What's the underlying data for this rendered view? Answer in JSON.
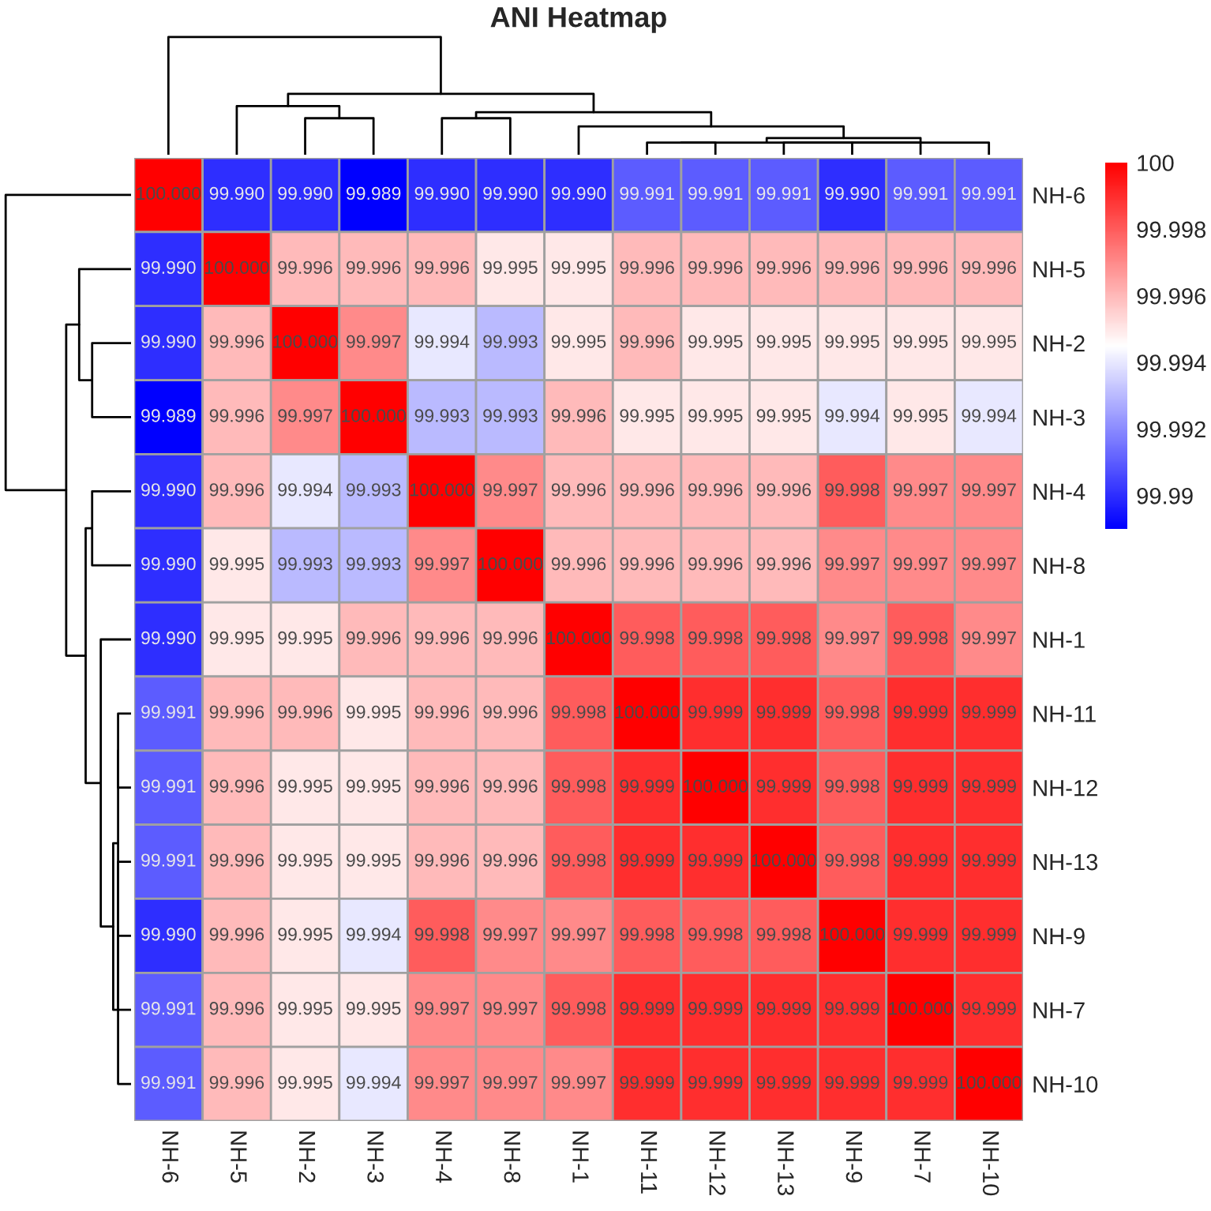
{
  "chart_data": {
    "type": "heatmap",
    "title": "ANI Heatmap",
    "categories": [
      "NH-6",
      "NH-5",
      "NH-2",
      "NH-3",
      "NH-4",
      "NH-8",
      "NH-1",
      "NH-11",
      "NH-12",
      "NH-13",
      "NH-9",
      "NH-7",
      "NH-10"
    ],
    "y_categories": [
      "NH-6",
      "NH-5",
      "NH-2",
      "NH-3",
      "NH-4",
      "NH-8",
      "NH-1",
      "NH-11",
      "NH-12",
      "NH-13",
      "NH-9",
      "NH-7",
      "NH-10"
    ],
    "cells": [
      [
        100.0,
        99.99,
        99.99,
        99.989,
        99.99,
        99.99,
        99.99,
        99.991,
        99.991,
        99.991,
        99.99,
        99.991,
        99.991
      ],
      [
        99.99,
        100.0,
        99.996,
        99.996,
        99.996,
        99.995,
        99.995,
        99.996,
        99.996,
        99.996,
        99.996,
        99.996,
        99.996
      ],
      [
        99.99,
        99.996,
        100.0,
        99.997,
        99.994,
        99.993,
        99.995,
        99.996,
        99.995,
        99.995,
        99.995,
        99.995,
        99.995
      ],
      [
        99.989,
        99.996,
        99.997,
        100.0,
        99.993,
        99.993,
        99.996,
        99.995,
        99.995,
        99.995,
        99.994,
        99.995,
        99.994
      ],
      [
        99.99,
        99.996,
        99.994,
        99.993,
        100.0,
        99.997,
        99.996,
        99.996,
        99.996,
        99.996,
        99.998,
        99.997,
        99.997
      ],
      [
        99.99,
        99.995,
        99.993,
        99.993,
        99.997,
        100.0,
        99.996,
        99.996,
        99.996,
        99.996,
        99.997,
        99.997,
        99.997
      ],
      [
        99.99,
        99.995,
        99.995,
        99.996,
        99.996,
        99.996,
        100.0,
        99.998,
        99.998,
        99.998,
        99.997,
        99.998,
        99.997
      ],
      [
        99.991,
        99.996,
        99.996,
        99.995,
        99.996,
        99.996,
        99.998,
        100.0,
        99.999,
        99.999,
        99.998,
        99.999,
        99.999
      ],
      [
        99.991,
        99.996,
        99.995,
        99.995,
        99.996,
        99.996,
        99.998,
        99.999,
        100.0,
        99.999,
        99.998,
        99.999,
        99.999
      ],
      [
        99.991,
        99.996,
        99.995,
        99.995,
        99.996,
        99.996,
        99.998,
        99.999,
        99.999,
        100.0,
        99.998,
        99.999,
        99.999
      ],
      [
        99.99,
        99.996,
        99.995,
        99.994,
        99.998,
        99.997,
        99.997,
        99.998,
        99.998,
        99.998,
        100.0,
        99.999,
        99.999
      ],
      [
        99.991,
        99.996,
        99.995,
        99.995,
        99.997,
        99.997,
        99.998,
        99.999,
        99.999,
        99.999,
        99.999,
        100.0,
        99.999
      ],
      [
        99.991,
        99.996,
        99.995,
        99.994,
        99.997,
        99.997,
        99.997,
        99.999,
        99.999,
        99.999,
        99.999,
        99.999,
        100.0
      ]
    ],
    "cell_labels": [
      [
        "100.000",
        "99.990",
        "99.990",
        "99.989",
        "99.990",
        "99.990",
        "99.990",
        "99.991",
        "99.991",
        "99.991",
        "99.990",
        "99.991",
        "99.991"
      ],
      [
        "99.990",
        "100.000",
        "99.996",
        "99.996",
        "99.996",
        "99.995",
        "99.995",
        "99.996",
        "99.996",
        "99.996",
        "99.996",
        "99.996",
        "99.996"
      ],
      [
        "99.990",
        "99.996",
        "100.000",
        "99.997",
        "99.994",
        "99.993",
        "99.995",
        "99.996",
        "99.995",
        "99.995",
        "99.995",
        "99.995",
        "99.995"
      ],
      [
        "99.989",
        "99.996",
        "99.997",
        "100.000",
        "99.993",
        "99.993",
        "99.996",
        "99.995",
        "99.995",
        "99.995",
        "99.994",
        "99.995",
        "99.994"
      ],
      [
        "99.990",
        "99.996",
        "99.994",
        "99.993",
        "100.000",
        "99.997",
        "99.996",
        "99.996",
        "99.996",
        "99.996",
        "99.998",
        "99.997",
        "99.997"
      ],
      [
        "99.990",
        "99.995",
        "99.993",
        "99.993",
        "99.997",
        "100.000",
        "99.996",
        "99.996",
        "99.996",
        "99.996",
        "99.997",
        "99.997",
        "99.997"
      ],
      [
        "99.990",
        "99.995",
        "99.995",
        "99.996",
        "99.996",
        "99.996",
        "100.000",
        "99.998",
        "99.998",
        "99.998",
        "99.997",
        "99.998",
        "99.997"
      ],
      [
        "99.991",
        "99.996",
        "99.996",
        "99.995",
        "99.996",
        "99.996",
        "99.998",
        "100.000",
        "99.999",
        "99.999",
        "99.998",
        "99.999",
        "99.999"
      ],
      [
        "99.991",
        "99.996",
        "99.995",
        "99.995",
        "99.996",
        "99.996",
        "99.998",
        "99.999",
        "100.000",
        "99.999",
        "99.998",
        "99.999",
        "99.999"
      ],
      [
        "99.991",
        "99.996",
        "99.995",
        "99.995",
        "99.996",
        "99.996",
        "99.998",
        "99.999",
        "99.999",
        "100.000",
        "99.998",
        "99.999",
        "99.999"
      ],
      [
        "99.990",
        "99.996",
        "99.995",
        "99.994",
        "99.998",
        "99.997",
        "99.997",
        "99.998",
        "99.998",
        "99.998",
        "100.000",
        "99.999",
        "99.999"
      ],
      [
        "99.991",
        "99.996",
        "99.995",
        "99.995",
        "99.997",
        "99.997",
        "99.998",
        "99.999",
        "99.999",
        "99.999",
        "99.999",
        "100.000",
        "99.999"
      ],
      [
        "99.991",
        "99.996",
        "99.995",
        "99.994",
        "99.997",
        "99.997",
        "99.997",
        "99.999",
        "99.999",
        "99.999",
        "99.999",
        "99.999",
        "100.000"
      ]
    ],
    "clim": [
      99.989,
      100
    ],
    "cticks": [
      99.99,
      99.992,
      99.994,
      99.996,
      99.998,
      100
    ]
  }
}
